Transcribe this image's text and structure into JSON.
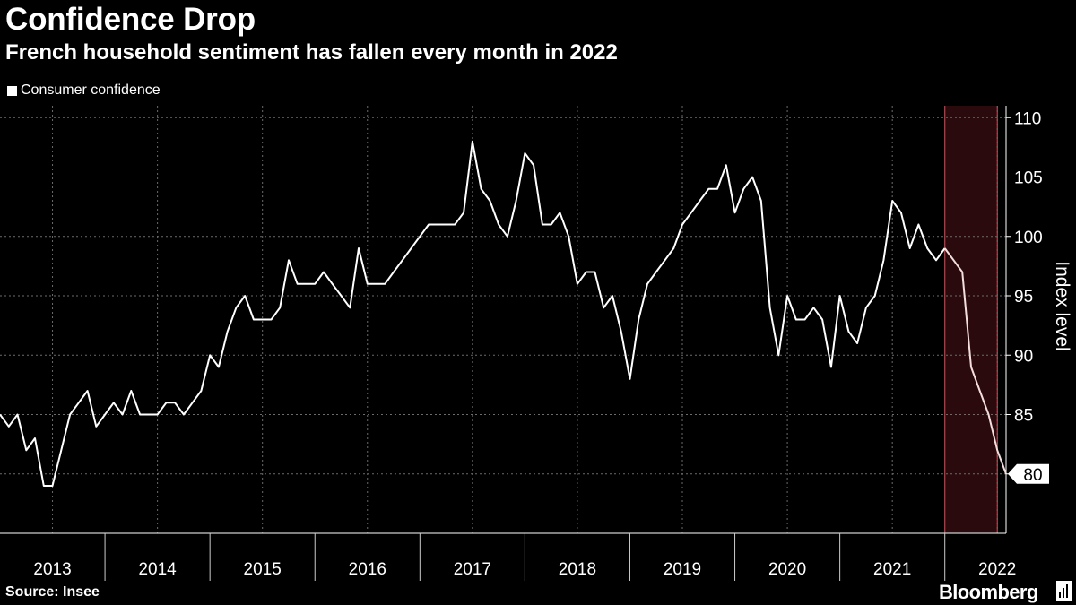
{
  "title": "Confidence Drop",
  "subtitle": "French household sentiment has fallen every month in 2022",
  "source": "Source: Insee",
  "brand": "Bloomberg",
  "colors": {
    "background": "#000000",
    "line": "#ffffff",
    "highlight_fill": "#2a0a0d",
    "highlight_edge": "#c0404a",
    "grid": "#6b6b6b"
  },
  "chart_data": {
    "type": "line",
    "ylabel": "Index level",
    "ylim": [
      75,
      111
    ],
    "yticks": [
      80,
      85,
      90,
      95,
      100,
      105,
      110
    ],
    "xlim": [
      2013,
      2022.5833
    ],
    "year_labels": [
      "2013",
      "2014",
      "2015",
      "2016",
      "2017",
      "2018",
      "2019",
      "2020",
      "2021",
      "2022"
    ],
    "grid": true,
    "legend_position": "top-left",
    "highlight": {
      "from": "2022-01",
      "to": "2022-07"
    },
    "last_value_label": "80",
    "series": [
      {
        "name": "Consumer confidence",
        "start": "2013-01",
        "frequency": "monthly",
        "values": [
          85,
          84,
          85,
          82,
          83,
          79,
          79,
          82,
          85,
          86,
          87,
          84,
          85,
          86,
          85,
          87,
          85,
          85,
          85,
          86,
          86,
          85,
          86,
          87,
          90,
          89,
          92,
          94,
          95,
          93,
          93,
          93,
          94,
          98,
          96,
          96,
          96,
          97,
          96,
          95,
          94,
          99,
          96,
          96,
          96,
          97,
          98,
          99,
          100,
          101,
          101,
          101,
          101,
          102,
          108,
          104,
          103,
          101,
          100,
          103,
          107,
          106,
          101,
          101,
          102,
          100,
          96,
          97,
          97,
          94,
          95,
          92,
          88,
          93,
          96,
          97,
          98,
          99,
          101,
          102,
          103,
          104,
          104,
          106,
          102,
          104,
          105,
          103,
          94,
          90,
          95,
          93,
          93,
          94,
          93,
          89,
          95,
          92,
          91,
          94,
          95,
          98,
          103,
          102,
          99,
          101,
          99,
          98,
          99,
          98,
          97,
          89,
          87,
          85,
          82,
          80
        ]
      }
    ]
  }
}
